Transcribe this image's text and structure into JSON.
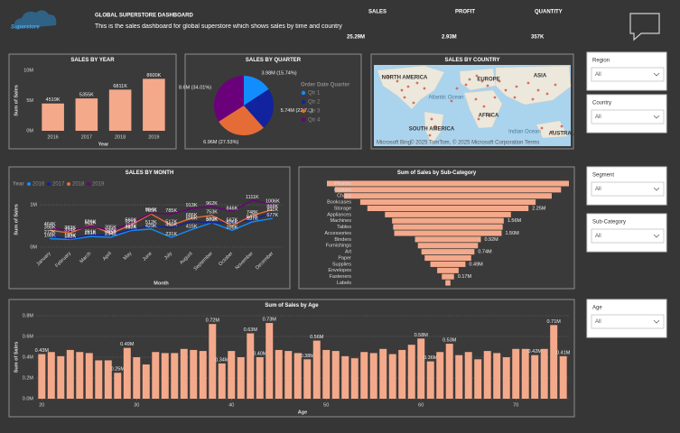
{
  "header": {
    "logo": "Superstore",
    "title": "GLOBAL SUPERSTORE DASHBOARD",
    "subtitle": "This is the sales dashboard for global superstore which shows sales by time and country"
  },
  "kpis": [
    {
      "label": "SALES",
      "value": "25.29M"
    },
    {
      "label": "PROFIT",
      "value": "2.93M"
    },
    {
      "label": "QUANTITY",
      "value": "357K"
    }
  ],
  "filters": [
    {
      "label": "Region",
      "value": "All"
    },
    {
      "label": "Country",
      "value": "All"
    },
    {
      "label": "Segment",
      "value": "All"
    },
    {
      "label": "Sub-Category",
      "value": "All"
    },
    {
      "label": "Age",
      "value": "All"
    }
  ],
  "chart_data": [
    {
      "type": "bar",
      "title": "SALES BY YEAR",
      "xlabel": "Year",
      "ylabel": "Sum of Sales",
      "categories": [
        "2016",
        "2017",
        "2018",
        "2019"
      ],
      "values": [
        4.519,
        5.355,
        6.811,
        8.6
      ],
      "value_labels": [
        "4519K",
        "5355K",
        "6811K",
        "8600K"
      ],
      "color": "#f4a98b",
      "grid": false,
      "ylim": [
        0,
        10
      ],
      "yticks": [
        {
          "value": 0,
          "label": "0M"
        },
        {
          "value": 5,
          "label": "5M"
        },
        {
          "value": 10,
          "label": "10M"
        }
      ]
    },
    {
      "type": "pie",
      "title": "SALES BY QUARTER",
      "legend_title": "Order Date Quarter",
      "categories": [
        "Qtr 1",
        "Qtr 2",
        "Qtr 3",
        "Qtr 4"
      ],
      "values": [
        3.98,
        5.74,
        6.96,
        8.6
      ],
      "value_labels": [
        "3.98M (15.74%)",
        "5.74M (22.7...)",
        "6.96M (27.53%)",
        "8.6M (34.01%)"
      ],
      "colors": [
        "#118dff",
        "#12239e",
        "#e66c37",
        "#6b007b"
      ]
    },
    {
      "type": "map",
      "title": "SALES BY COUNTRY",
      "labels": [
        "NORTH AMERICA",
        "EUROPE",
        "ASIA",
        "Atlantic Ocean",
        "AFRICA",
        "SOUTH AMERICA",
        "Indian Ocean",
        "AUSTRAL"
      ],
      "attribution": "© 2025 TomTom, © 2025 Microsoft Corporation  Terms",
      "provider": "Microsoft Bing"
    },
    {
      "type": "line",
      "title": "SALES BY MONTH",
      "xlabel": "Month",
      "ylabel": "Sum of Sales",
      "legend_title": "Year",
      "categories": [
        "January",
        "February",
        "March",
        "April",
        "May",
        "June",
        "July",
        "August",
        "September",
        "October",
        "November",
        "December"
      ],
      "series": [
        {
          "name": "2016",
          "color": "#118dff",
          "values": [
            0.198,
            0.182,
            0.251,
            0.234,
            0.393,
            0.429,
            0.231,
            0.415,
            0.579,
            0.398,
            0.597,
            0.677
          ],
          "value_labels": [
            "198K",
            "182K",
            "251K",
            "234K",
            "393K",
            "429K",
            "231K",
            "415K",
            "579K",
            "398K",
            "597K",
            "677K"
          ]
        },
        {
          "name": "2017",
          "color": "#12239e",
          "values": [
            0.272,
            0.199,
            0.291,
            0.285,
            0.417,
            0.512,
            0.46,
            0.606,
            0.58,
            0.567,
            0.647,
            0.811
          ],
          "value_labels": [
            "272K",
            "199K",
            "291K",
            "285K",
            "417K",
            "512K",
            "460K",
            "606K",
            "580K",
            "567K",
            "647K",
            "811K"
          ]
        },
        {
          "name": "2018",
          "color": "#e66c37",
          "values": [
            0.398,
            0.334,
            0.526,
            0.322,
            0.521,
            0.785,
            0.517,
            0.686,
            0.753,
            0.506,
            0.748,
            0.888
          ],
          "value_labels": [
            "398K",
            "334K",
            "526K",
            "322K",
            "521K",
            "785K",
            "517K",
            "686K",
            "753K",
            "506K",
            "748K",
            "888K"
          ]
        },
        {
          "name": "2019",
          "color": "#6b007b",
          "values": [
            0.464,
            0.383,
            0.501,
            0.395,
            0.56,
            0.804,
            0.785,
            0.913,
            0.962,
            0.846,
            1.111,
            1.006
          ],
          "value_labels": [
            "464K",
            "383K",
            "501K",
            "395K",
            "560K",
            "804K",
            "785K",
            "913K",
            "962K",
            "846K",
            "1111K",
            "1006K"
          ]
        }
      ],
      "grid": true,
      "ylim": [
        0,
        1.3
      ],
      "yticks": [
        {
          "value": 0,
          "label": "0M"
        },
        {
          "value": 1,
          "label": "1M"
        }
      ]
    },
    {
      "type": "funnel",
      "title": "Sum of Sales by Sub-Category",
      "categories": [
        "Phones",
        "Copiers",
        "Chairs",
        "Bookcases",
        "Storage",
        "Appliances",
        "Machines",
        "Tables",
        "Accessories",
        "Binders",
        "Furnishings",
        "Art",
        "Paper",
        "Supplies",
        "Envelopes",
        "Fasteners",
        "Labels"
      ],
      "values": [
        3.38,
        3.16,
        2.9,
        2.45,
        2.25,
        1.76,
        1.56,
        1.53,
        1.5,
        0.92,
        0.84,
        0.74,
        0.65,
        0.49,
        0.3,
        0.17,
        0.07
      ],
      "value_labels": [
        null,
        null,
        null,
        null,
        "2.25M",
        null,
        "1.56M",
        null,
        "1.50M",
        "0.92M",
        null,
        "0.74M",
        null,
        "0.49M",
        null,
        "0.17M",
        null
      ],
      "color": "#f4a98b"
    },
    {
      "type": "bar",
      "title": "Sum of Sales by Age",
      "xlabel": "Age",
      "ylabel": "Sum of Sales",
      "x": [
        20,
        21,
        22,
        23,
        24,
        25,
        26,
        27,
        28,
        29,
        30,
        31,
        32,
        33,
        34,
        35,
        36,
        37,
        38,
        39,
        40,
        41,
        42,
        43,
        44,
        45,
        46,
        47,
        48,
        49,
        50,
        51,
        52,
        53,
        54,
        55,
        56,
        57,
        58,
        59,
        60,
        61,
        62,
        63,
        64,
        65,
        66,
        67,
        68,
        69,
        70,
        71,
        72,
        73,
        74,
        75
      ],
      "values": [
        0.43,
        0.45,
        0.41,
        0.47,
        0.45,
        0.44,
        0.37,
        0.37,
        0.25,
        0.49,
        0.4,
        0.33,
        0.45,
        0.44,
        0.44,
        0.48,
        0.47,
        0.46,
        0.72,
        0.34,
        0.46,
        0.4,
        0.63,
        0.4,
        0.73,
        0.47,
        0.46,
        0.44,
        0.38,
        0.56,
        0.47,
        0.46,
        0.41,
        0.39,
        0.45,
        0.44,
        0.48,
        0.43,
        0.47,
        0.52,
        0.58,
        0.36,
        0.45,
        0.53,
        0.42,
        0.45,
        0.38,
        0.46,
        0.44,
        0.4,
        0.48,
        0.48,
        0.42,
        0.48,
        0.71,
        0.41
      ],
      "value_labels": [
        "0.43M",
        null,
        null,
        null,
        null,
        null,
        null,
        null,
        "0.25M",
        "0.49M",
        null,
        null,
        null,
        null,
        null,
        null,
        null,
        null,
        "0.72M",
        "0.34M",
        null,
        null,
        "0.63M",
        "0.40M",
        "0.73M",
        null,
        null,
        null,
        "0.38M",
        "0.56M",
        null,
        null,
        null,
        null,
        null,
        null,
        null,
        null,
        null,
        null,
        "0.58M",
        "0.36M",
        null,
        "0.53M",
        null,
        null,
        null,
        null,
        null,
        null,
        null,
        null,
        "0.42M",
        null,
        "0.71M",
        "0.41M"
      ],
      "color": "#f4a98b",
      "grid": true,
      "xlim": [
        19.4,
        75.6
      ],
      "xticks": [
        20,
        30,
        40,
        50,
        60,
        70
      ],
      "ylim": [
        0,
        0.8
      ],
      "yticks": [
        {
          "value": 0,
          "label": "0.0M"
        },
        {
          "value": 0.2,
          "label": "0.2M"
        },
        {
          "value": 0.4,
          "label": "0.4M"
        },
        {
          "value": 0.6,
          "label": "0.6M"
        },
        {
          "value": 0.8,
          "label": "0.8M"
        }
      ]
    }
  ]
}
